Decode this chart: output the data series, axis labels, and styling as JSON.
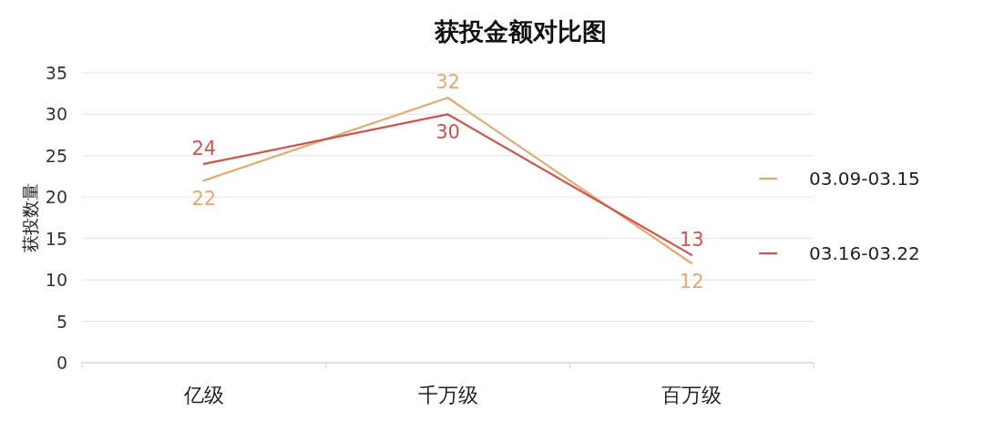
{
  "chart_data": {
    "type": "line",
    "title": "获投金额对比图",
    "ylabel": "获投数量",
    "categories": [
      "亿级",
      "千万级",
      "百万级"
    ],
    "series": [
      {
        "name": "03.09-03.15",
        "color": "#e6a86e",
        "values": [
          22,
          32,
          12
        ]
      },
      {
        "name": "03.16-03.22",
        "color": "#d2524c",
        "values": [
          24,
          30,
          13
        ]
      }
    ],
    "ylim": [
      0,
      35
    ],
    "yticks": [
      0,
      5,
      10,
      15,
      20,
      25,
      30,
      35
    ],
    "grid": "y",
    "legend": "right",
    "data_labels": true,
    "marker": "none",
    "line_style": "solid"
  }
}
